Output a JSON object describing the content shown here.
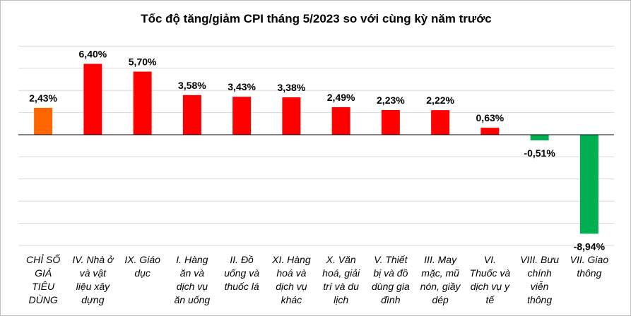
{
  "chart_data": {
    "type": "bar",
    "title": "Tốc độ tăng/giảm CPI tháng 5/2023 so với cùng kỳ năm trước",
    "xlabel": "",
    "ylabel": "",
    "unit": "%",
    "ylim": [
      -10,
      8
    ],
    "grid": true,
    "legend": "none",
    "categories": [
      "CHỈ SỐ GIÁ TIÊU DÙNG",
      "IV. Nhà ở và vật liệu xây dựng",
      "IX. Giáo dục",
      "I. Hàng ăn và dịch vụ ăn uống",
      "II. Đồ uống và thuốc lá",
      "XI. Hàng hoá và dịch vụ khác",
      "X. Văn hoá, giải trí và du lịch",
      "V. Thiết bị và đồ dùng gia đình",
      "III. May mặc, mũ nón, giầy dép",
      "VI. Thuốc và dịch vụ y tế",
      "VIII. Bưu chính viễn thông",
      "VII. Giao thông"
    ],
    "category_lines": [
      [
        "CHỈ SỐ",
        "GIÁ",
        "TIÊU",
        "DÙNG"
      ],
      [
        "IV. Nhà ở",
        "và vật",
        "liệu xây",
        "dựng"
      ],
      [
        "IX. Giáo",
        "dục"
      ],
      [
        "I. Hàng",
        "ăn và",
        "dịch vụ",
        "ăn uống"
      ],
      [
        "II. Đồ",
        "uống và",
        "thuốc lá"
      ],
      [
        "XI. Hàng",
        "hoá và",
        "dịch vụ",
        "khác"
      ],
      [
        "X. Văn",
        "hoá, giải",
        "trí và du",
        "lịch"
      ],
      [
        "V. Thiết",
        "bị và đồ",
        "dùng gia",
        "đình"
      ],
      [
        "III. May",
        "mặc, mũ",
        "nón, giầy",
        "dép"
      ],
      [
        "VI.",
        "Thuốc và",
        "dịch vụ y",
        "tế"
      ],
      [
        "VIII. Bưu",
        "chính",
        "viễn",
        "thông"
      ],
      [
        "VII. Giao",
        "thông"
      ]
    ],
    "values": [
      2.43,
      6.4,
      5.7,
      3.58,
      3.43,
      3.38,
      2.49,
      2.23,
      2.22,
      0.63,
      -0.51,
      -8.94
    ],
    "value_labels": [
      "2,43%",
      "6,40%",
      "5,70%",
      "3,58%",
      "3,43%",
      "3,38%",
      "2,49%",
      "2,23%",
      "2,22%",
      "0,63%",
      "-0,51%",
      "-8,94%"
    ],
    "colors": {
      "overall": "#FF6600",
      "increase": "#FF0000",
      "decrease": "#00B050",
      "gridline": "#D9D9D9",
      "axis": "#000000"
    }
  }
}
